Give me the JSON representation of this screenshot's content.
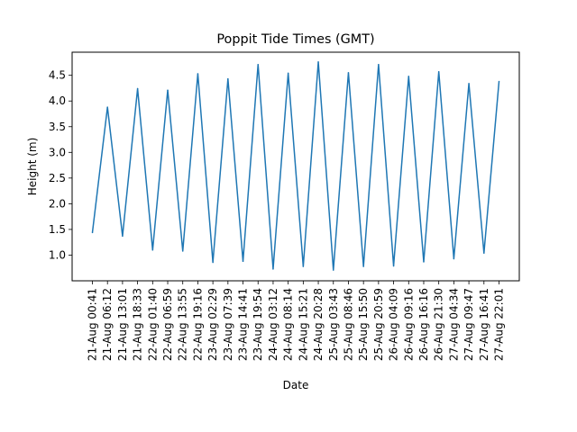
{
  "chart_data": {
    "type": "line",
    "title": "Poppit Tide Times (GMT)",
    "xlabel": "Date",
    "ylabel": "Height (m)",
    "ylim": [
      0.5,
      4.95
    ],
    "y_ticks": [
      "1.0",
      "1.5",
      "2.0",
      "2.5",
      "3.0",
      "3.5",
      "4.0",
      "4.5"
    ],
    "grid": false,
    "line_color": "#1f77b4",
    "categories": [
      "21-Aug 00:41",
      "21-Aug 06:12",
      "21-Aug 13:01",
      "21-Aug 18:33",
      "22-Aug 01:40",
      "22-Aug 06:59",
      "22-Aug 13:55",
      "22-Aug 19:16",
      "23-Aug 02:29",
      "23-Aug 07:39",
      "23-Aug 14:41",
      "23-Aug 19:54",
      "24-Aug 03:12",
      "24-Aug 08:14",
      "24-Aug 15:21",
      "24-Aug 20:28",
      "25-Aug 03:43",
      "25-Aug 08:46",
      "25-Aug 15:50",
      "25-Aug 20:59",
      "26-Aug 04:09",
      "26-Aug 09:16",
      "26-Aug 16:16",
      "26-Aug 21:30",
      "27-Aug 04:34",
      "27-Aug 09:47",
      "27-Aug 16:41",
      "27-Aug 22:01"
    ],
    "series": [
      {
        "values": [
          1.44,
          3.88,
          1.37,
          4.24,
          1.1,
          4.21,
          1.08,
          4.53,
          0.86,
          4.43,
          0.88,
          4.71,
          0.73,
          4.54,
          0.78,
          4.76,
          0.71,
          4.55,
          0.78,
          4.71,
          0.79,
          4.48,
          0.87,
          4.57,
          0.93,
          4.34,
          1.04,
          4.38
        ]
      }
    ]
  }
}
